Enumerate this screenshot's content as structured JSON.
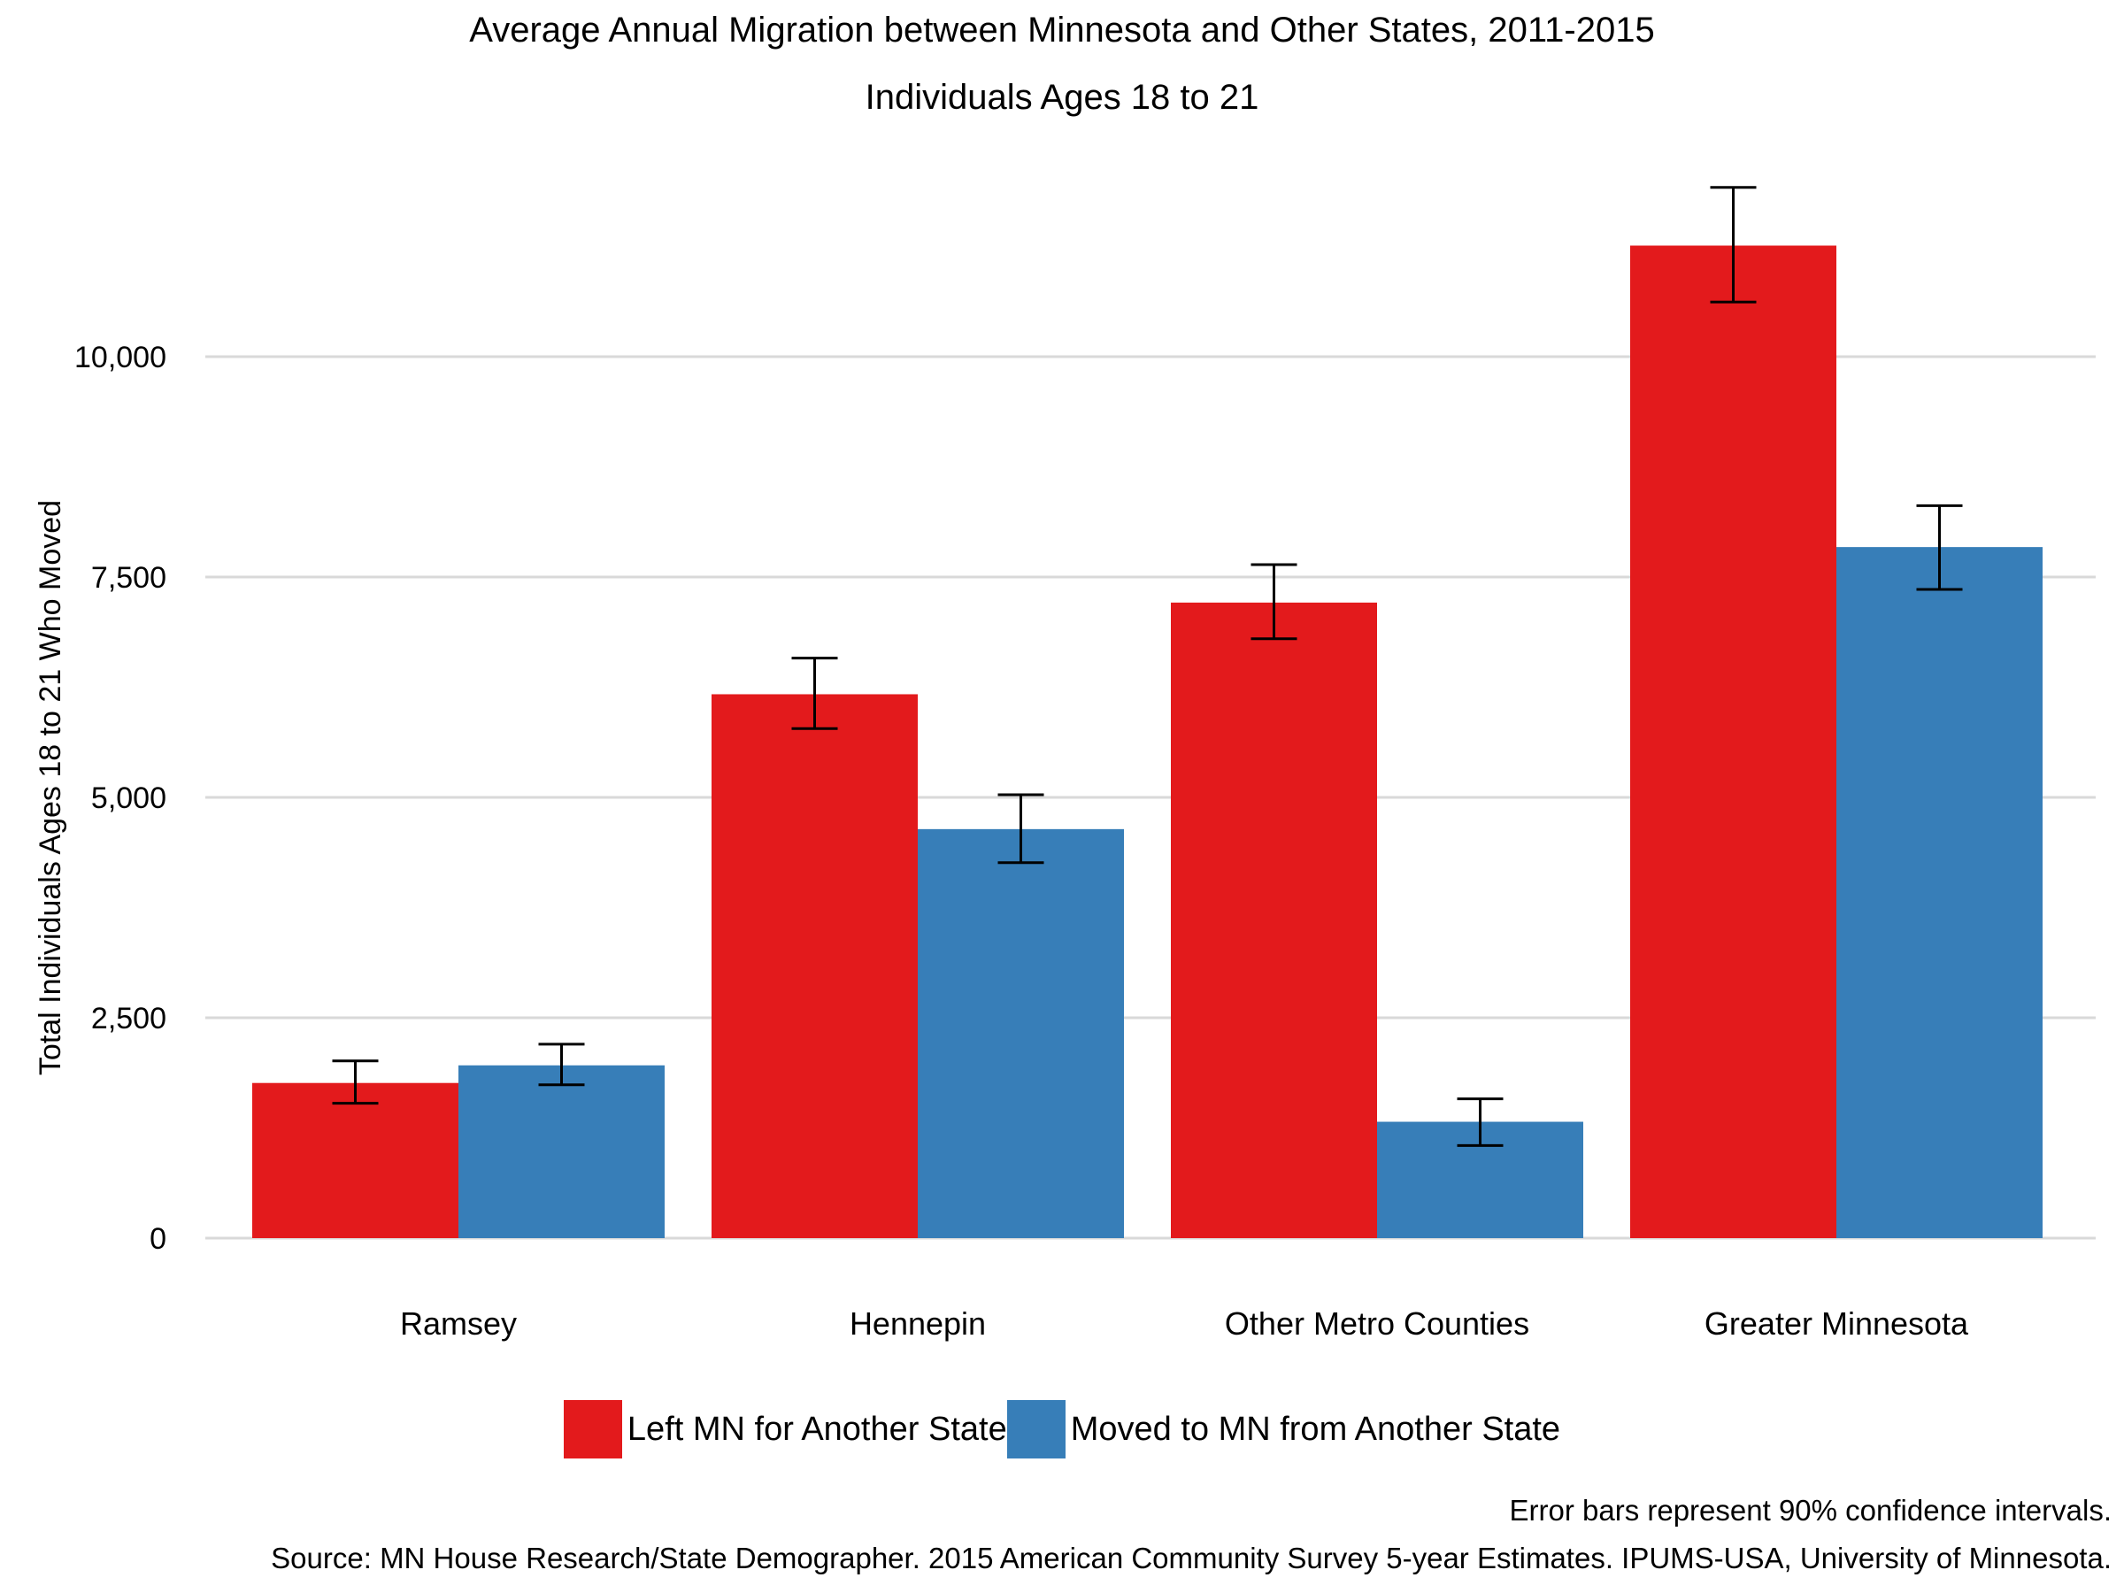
{
  "chart_data": {
    "type": "bar",
    "title": "Average Annual Migration between Minnesota and Other States, 2011-2015",
    "subtitle": "Individuals Ages 18 to 21",
    "xlabel": "",
    "ylabel": "Total Individuals Ages 18 to 21 Who Moved",
    "categories": [
      "Ramsey",
      "Hennepin",
      "Other Metro Counties",
      "Greater Minnesota"
    ],
    "series": [
      {
        "name": "Left MN for Another State",
        "color": "#e31a1c",
        "values": [
          1760,
          6170,
          7210,
          11260
        ],
        "error_low": [
          1530,
          5780,
          6800,
          10620
        ],
        "error_high": [
          2010,
          6580,
          7640,
          11920
        ]
      },
      {
        "name": "Moved to MN from Another State",
        "color": "#377eb8",
        "values": [
          1960,
          4640,
          1320,
          7840
        ],
        "error_low": [
          1740,
          4260,
          1050,
          7360
        ],
        "error_high": [
          2200,
          5030,
          1580,
          8310
        ]
      }
    ],
    "yticks": [
      0,
      2500,
      5000,
      7500,
      10000
    ],
    "ytick_labels": [
      "0",
      "2,500",
      "5,000",
      "7,500",
      "10,000"
    ],
    "ylim": [
      0,
      12500
    ],
    "grid": true,
    "legend_position": "bottom",
    "note": "Error bars represent 90% confidence intervals.",
    "source": "Source: MN House Research/State Demographer. 2015 American Community Survey 5-year Estimates. IPUMS-USA, University of Minnesota."
  }
}
